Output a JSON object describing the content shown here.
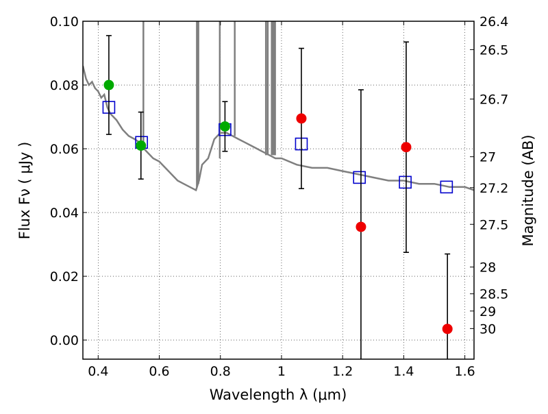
{
  "chart_data": {
    "type": "scatter",
    "title": "",
    "xlabel": "Wavelength  λ (μm)",
    "ylabel": "Flux  Fν  ( μJy )",
    "ylabel_right": "Magnitude (AB)",
    "xlim": [
      0.35,
      1.63
    ],
    "ylim": [
      -0.006,
      0.1
    ],
    "x_ticks": [
      0.4,
      0.6,
      0.8,
      1.0,
      1.2,
      1.4,
      1.6
    ],
    "x_tick_labels": [
      "0.4",
      "0.6",
      "0.8",
      "1",
      "1.2",
      "1.4",
      "1.6"
    ],
    "y_ticks": [
      0.0,
      0.02,
      0.04,
      0.06,
      0.08,
      0.1
    ],
    "y_tick_labels": [
      "0.00",
      "0.02",
      "0.04",
      "0.06",
      "0.08",
      "0.10"
    ],
    "grid": true,
    "mag_ticks": [
      {
        "flux": 0.1,
        "label": "26.4"
      },
      {
        "flux": 0.0911,
        "label": "26.5"
      },
      {
        "flux": 0.0756,
        "label": "26.7"
      },
      {
        "flux": 0.0575,
        "label": "27"
      },
      {
        "flux": 0.0478,
        "label": "27.2"
      },
      {
        "flux": 0.0363,
        "label": "27.5"
      },
      {
        "flux": 0.0229,
        "label": "28"
      },
      {
        "flux": 0.0145,
        "label": "28.5"
      },
      {
        "flux": 0.0091,
        "label": "29"
      },
      {
        "flux": 0.0036,
        "label": "30"
      }
    ],
    "series": [
      {
        "name": "model spectrum",
        "style": "line",
        "color": "#7f7f7f",
        "x": [
          0.35,
          0.36,
          0.37,
          0.38,
          0.39,
          0.4,
          0.41,
          0.42,
          0.43,
          0.44,
          0.46,
          0.48,
          0.5,
          0.52,
          0.535,
          0.545,
          0.55,
          0.56,
          0.58,
          0.6,
          0.62,
          0.64,
          0.66,
          0.68,
          0.7,
          0.72,
          0.73,
          0.74,
          0.76,
          0.78,
          0.8,
          0.82,
          0.84,
          0.86,
          0.88,
          0.9,
          0.92,
          0.94,
          0.96,
          0.98,
          1.0,
          1.05,
          1.1,
          1.15,
          1.2,
          1.25,
          1.3,
          1.35,
          1.4,
          1.45,
          1.5,
          1.55,
          1.6,
          1.63
        ],
        "y": [
          0.086,
          0.082,
          0.08,
          0.081,
          0.079,
          0.078,
          0.076,
          0.077,
          0.073,
          0.071,
          0.069,
          0.066,
          0.064,
          0.063,
          0.062,
          0.061,
          0.06,
          0.059,
          0.057,
          0.056,
          0.054,
          0.052,
          0.05,
          0.049,
          0.048,
          0.047,
          0.05,
          0.055,
          0.057,
          0.063,
          0.065,
          0.065,
          0.064,
          0.063,
          0.062,
          0.061,
          0.06,
          0.059,
          0.058,
          0.057,
          0.057,
          0.055,
          0.054,
          0.054,
          0.053,
          0.052,
          0.051,
          0.05,
          0.05,
          0.049,
          0.049,
          0.048,
          0.048,
          0.047
        ]
      },
      {
        "name": "model spikes",
        "style": "spikes",
        "color": "#7f7f7f",
        "x": [
          0.548,
          0.723,
          0.728,
          0.798,
          0.847,
          0.949,
          0.955,
          0.968,
          0.972,
          0.976,
          0.979
        ],
        "y_base": [
          0.06,
          0.048,
          0.049,
          0.057,
          0.064,
          0.058,
          0.058,
          0.058,
          0.058,
          0.058,
          0.058
        ]
      },
      {
        "name": "model photometry",
        "style": "open-square",
        "color": "#0000cc",
        "x": [
          0.435,
          0.542,
          0.815,
          1.065,
          1.255,
          1.405,
          1.54
        ],
        "y": [
          0.073,
          0.062,
          0.066,
          0.0615,
          0.051,
          0.0495,
          0.048
        ]
      },
      {
        "name": "observed (green)",
        "style": "filled-circle",
        "color": "#00aa00",
        "x": [
          0.435,
          0.54,
          0.815
        ],
        "y": [
          0.08,
          0.061,
          0.067
        ],
        "err": [
          0.0155,
          0.0105,
          0.0078
        ]
      },
      {
        "name": "observed (red)",
        "style": "filled-circle",
        "color": "#ee0000",
        "x": [
          1.065,
          1.26,
          1.408,
          1.543
        ],
        "y": [
          0.0695,
          0.0355,
          0.0605,
          0.0035
        ],
        "err": [
          0.022,
          0.043,
          0.033,
          0.0235
        ]
      }
    ]
  }
}
